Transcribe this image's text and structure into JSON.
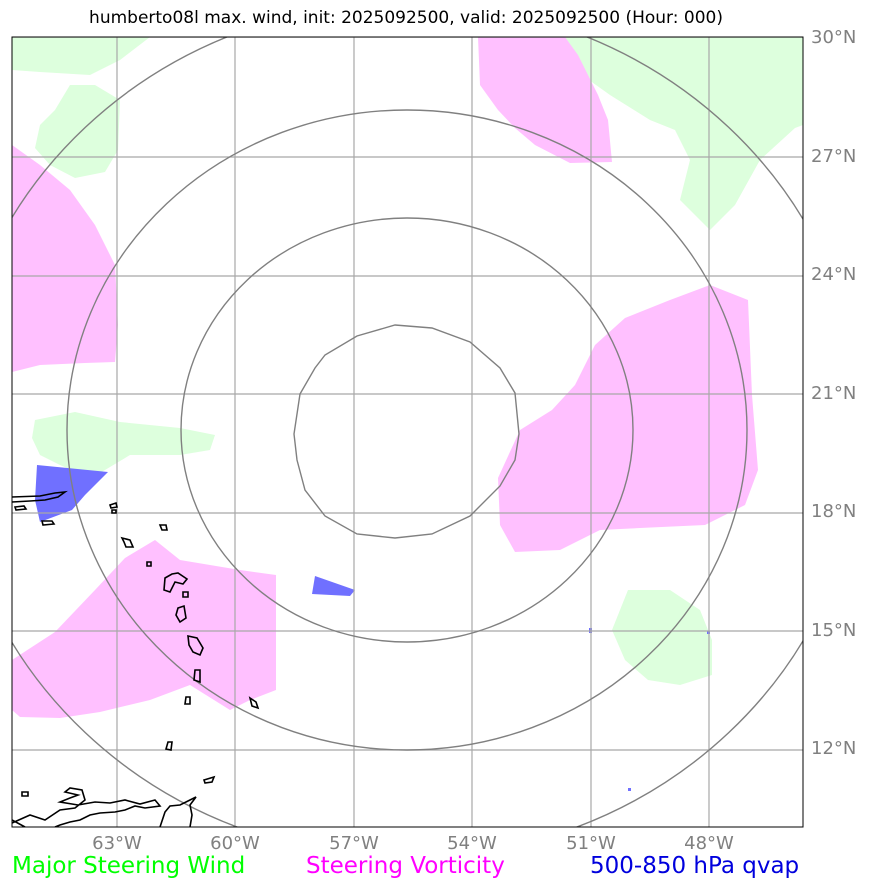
{
  "title": "humberto08l max. wind, init: 2025092500, valid: 2025092500 (Hour: 000)",
  "map": {
    "lat_labels": [
      "30°N",
      "27°N",
      "24°N",
      "21°N",
      "18°N",
      "15°N",
      "12°N"
    ],
    "lon_labels": [
      "63°W",
      "60°W",
      "57°W",
      "54°W",
      "51°W",
      "48°W"
    ],
    "colors": {
      "steering_wind_fill": "#ddffdd",
      "vorticity_fill": "#ffc0ff",
      "qvap_fill": "#7070ff",
      "grid": "#a8a8a8",
      "rings": "#808080",
      "coast": "#000000"
    }
  },
  "legend": {
    "wind": {
      "label": "Major Steering Wind",
      "color": "#00ff00"
    },
    "vorticity": {
      "label": "Steering Vorticity",
      "color": "#ff00ff"
    },
    "qvap": {
      "label": "500-850 hPa qvap",
      "color": "#0000dd"
    }
  }
}
